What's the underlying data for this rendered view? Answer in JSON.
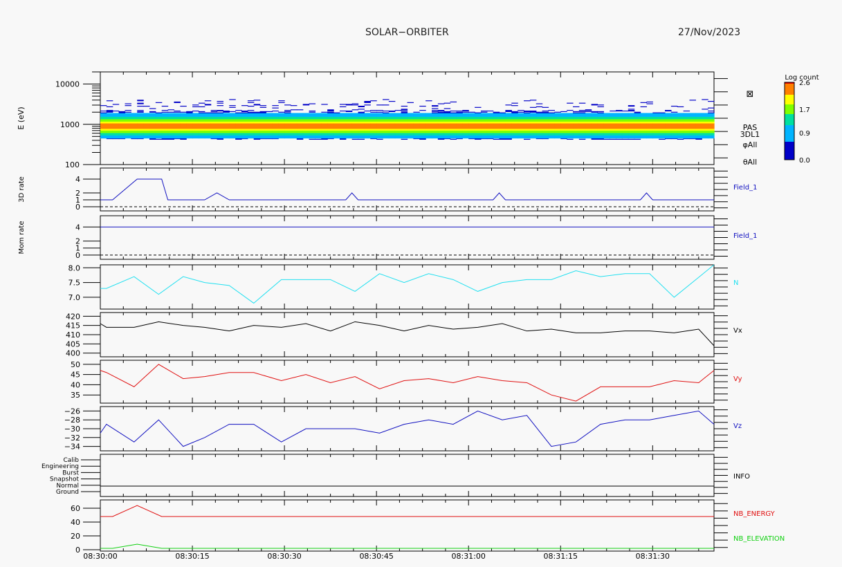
{
  "header": {
    "title": "SOLAR−ORBITER",
    "date": "27/Nov/2023"
  },
  "colorbar": {
    "title": "Log count",
    "ticks": [
      "2.6",
      "1.7",
      "0.9",
      "0.0"
    ]
  },
  "xaxis": {
    "ticks": [
      "08:30:00",
      "08:30:15",
      "08:30:30",
      "08:30:45",
      "08:31:00",
      "08:31:15",
      "08:31:30"
    ]
  },
  "colors": {
    "blue": "#1010c0",
    "cyan": "#20e0f0",
    "black": "#000000",
    "red": "#e01010",
    "green": "#10d010"
  },
  "chart_data": [
    {
      "type": "heatmap",
      "ylabel": "E (eV)",
      "ytick_labels": [
        "10000",
        "1000",
        "100"
      ],
      "ylim": [
        100,
        20000
      ],
      "log_y": true,
      "xlim_s": [
        0,
        100
      ],
      "peak_energy_ev": 900,
      "colorbar_range": [
        0.0,
        2.6
      ],
      "right_labels": [
        "PAS",
        "3DL1",
        "φAll",
        "θAll"
      ]
    },
    {
      "type": "line",
      "ylabel": "3D rate",
      "ytick_labels": [
        "4",
        "2",
        "1",
        "0"
      ],
      "ylim": [
        -0.6,
        5.6
      ],
      "series": [
        {
          "name": "Field_1",
          "color": "blue",
          "x": [
            0,
            2,
            6,
            10,
            11,
            15,
            17,
            19,
            21,
            25,
            30,
            35,
            40,
            41,
            42,
            43,
            45,
            50,
            55,
            60,
            64,
            65,
            66,
            70,
            75,
            80,
            85,
            88,
            89,
            90,
            95,
            100
          ],
          "y": [
            1,
            1,
            4,
            4,
            1,
            1,
            1,
            2,
            1,
            1,
            1,
            1,
            1,
            2,
            1,
            1,
            1,
            1,
            1,
            1,
            1,
            2,
            1,
            1,
            1,
            1,
            1,
            1,
            2,
            1,
            1,
            1
          ]
        }
      ]
    },
    {
      "type": "line",
      "ylabel": "Mom rate",
      "ytick_labels": [
        "4",
        "2",
        "1",
        "0"
      ],
      "ylim": [
        -0.6,
        5.6
      ],
      "series": [
        {
          "name": "Field_1",
          "color": "blue",
          "x": [
            0,
            100
          ],
          "y": [
            4,
            4
          ]
        }
      ]
    },
    {
      "type": "line",
      "ytick_labels": [
        "8.0",
        "7.5",
        "7.0"
      ],
      "ylim": [
        6.6,
        8.1
      ],
      "series": [
        {
          "name": "N",
          "color": "cyan",
          "x": [
            0,
            1,
            5.5,
            9.5,
            13.5,
            17,
            21,
            25,
            29.5,
            33.5,
            37.5,
            41.5,
            45.5,
            49.5,
            53.5,
            57.5,
            61.5,
            65.5,
            69.5,
            73.5,
            77.5,
            81.5,
            85.5,
            89.5,
            93.5,
            100
          ],
          "y": [
            7.3,
            7.3,
            7.7,
            7.1,
            7.7,
            7.5,
            7.4,
            6.8,
            7.6,
            7.6,
            7.6,
            7.2,
            7.8,
            7.5,
            7.8,
            7.6,
            7.2,
            7.5,
            7.6,
            7.6,
            7.9,
            7.7,
            7.8,
            7.8,
            7.0,
            8.1
          ]
        }
      ]
    },
    {
      "type": "line",
      "ytick_labels": [
        "420",
        "415",
        "410",
        "405",
        "400"
      ],
      "ylim": [
        398,
        422
      ],
      "series": [
        {
          "name": "Vx",
          "color": "black",
          "x": [
            0,
            1,
            5.5,
            9.5,
            13.5,
            17,
            21,
            25,
            29.5,
            33.5,
            37.5,
            41.5,
            45.5,
            49.5,
            53.5,
            57.5,
            61.5,
            65.5,
            69.5,
            73.5,
            77.5,
            81.5,
            85.5,
            89.5,
            93.5,
            97.5,
            100
          ],
          "y": [
            416,
            414,
            414,
            417,
            415,
            414,
            412,
            415,
            414,
            416,
            412,
            417,
            415,
            412,
            415,
            413,
            414,
            416,
            412,
            413,
            411,
            411,
            412,
            412,
            411,
            413,
            404
          ]
        }
      ]
    },
    {
      "type": "line",
      "ytick_labels": [
        "50",
        "45",
        "40",
        "35"
      ],
      "ylim": [
        31,
        52
      ],
      "series": [
        {
          "name": "Vy",
          "color": "red",
          "x": [
            0,
            1,
            5.5,
            9.5,
            13.5,
            17,
            21,
            25,
            29.5,
            33.5,
            37.5,
            41.5,
            45.5,
            49.5,
            53.5,
            57.5,
            61.5,
            65.5,
            69.5,
            73.5,
            77.5,
            81.5,
            85.5,
            89.5,
            93.5,
            97.5,
            100
          ],
          "y": [
            47,
            46,
            39,
            50,
            43,
            44,
            46,
            46,
            42,
            45,
            41,
            44,
            38,
            42,
            43,
            41,
            44,
            42,
            41,
            35,
            32,
            39,
            39,
            39,
            42,
            41,
            47
          ]
        }
      ]
    },
    {
      "type": "line",
      "ytick_labels": [
        "−26",
        "−28",
        "−30",
        "−32",
        "−34"
      ],
      "ylim": [
        -35,
        -25
      ],
      "series": [
        {
          "name": "Vz",
          "color": "blue",
          "x": [
            0,
            1,
            5.5,
            9.5,
            13.5,
            17,
            21,
            25,
            29.5,
            33.5,
            37.5,
            41.5,
            45.5,
            49.5,
            53.5,
            57.5,
            61.5,
            65.5,
            69.5,
            73.5,
            77.5,
            81.5,
            85.5,
            89.5,
            93.5,
            97.5,
            100
          ],
          "y": [
            -31,
            -29,
            -33,
            -28,
            -34,
            -32,
            -29,
            -29,
            -33,
            -30,
            -30,
            -30,
            -31,
            -29,
            -28,
            -29,
            -26,
            -28,
            -27,
            -34,
            -33,
            -29,
            -28,
            -28,
            -27,
            -26,
            -29
          ]
        }
      ]
    },
    {
      "type": "table",
      "right_label": "INFO",
      "rows": [
        "Calib",
        "Engineering",
        "Burst",
        "Snapshot",
        "Normal",
        "Ground"
      ]
    },
    {
      "type": "line",
      "ytick_labels": [
        "60",
        "40",
        "20",
        "0"
      ],
      "ylim": [
        -2,
        72
      ],
      "series": [
        {
          "name": "NB_ENERGY",
          "color": "red",
          "x": [
            0,
            2,
            6,
            10,
            100
          ],
          "y": [
            48,
            48,
            64,
            48,
            48
          ]
        },
        {
          "name": "NB_ELEVATION",
          "color": "green",
          "x": [
            0,
            2,
            6,
            10,
            100
          ],
          "y": [
            2,
            2,
            8,
            2,
            2
          ]
        }
      ]
    }
  ]
}
